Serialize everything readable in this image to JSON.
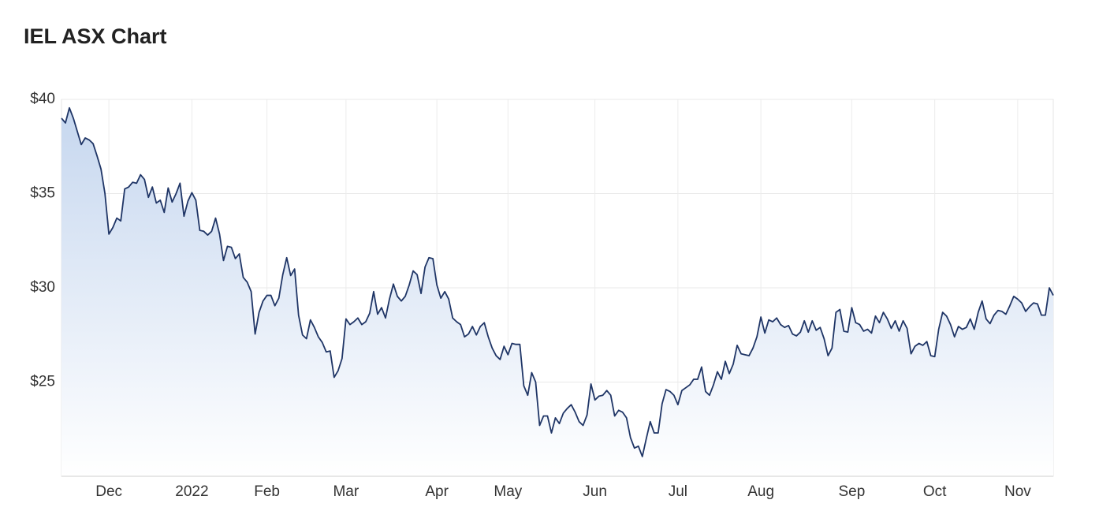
{
  "chart_data": {
    "type": "line",
    "title": "IEL ASX Chart",
    "categories": [
      null,
      null,
      null,
      null,
      null,
      null,
      null,
      null,
      null,
      null,
      null,
      null,
      "Dec",
      null,
      null,
      null,
      null,
      null,
      null,
      null,
      null,
      null,
      null,
      null,
      null,
      null,
      null,
      null,
      null,
      null,
      null,
      null,
      null,
      "2022",
      null,
      null,
      null,
      null,
      null,
      null,
      null,
      null,
      null,
      null,
      null,
      null,
      null,
      null,
      null,
      null,
      null,
      null,
      "Feb",
      null,
      null,
      null,
      null,
      null,
      null,
      null,
      null,
      null,
      null,
      null,
      null,
      null,
      null,
      null,
      null,
      null,
      null,
      null,
      "Mar",
      null,
      null,
      null,
      null,
      null,
      null,
      null,
      null,
      null,
      null,
      null,
      null,
      null,
      null,
      null,
      null,
      null,
      null,
      null,
      null,
      null,
      null,
      "Apr",
      null,
      null,
      null,
      null,
      null,
      null,
      null,
      null,
      null,
      null,
      null,
      null,
      null,
      null,
      null,
      null,
      null,
      "May",
      null,
      null,
      null,
      null,
      null,
      null,
      null,
      null,
      null,
      null,
      null,
      null,
      null,
      null,
      null,
      null,
      null,
      null,
      null,
      null,
      null,
      "Jun",
      null,
      null,
      null,
      null,
      null,
      null,
      null,
      null,
      null,
      null,
      null,
      null,
      null,
      null,
      null,
      null,
      null,
      null,
      null,
      null,
      "Jul",
      null,
      null,
      null,
      null,
      null,
      null,
      null,
      null,
      null,
      null,
      null,
      null,
      null,
      null,
      null,
      null,
      null,
      null,
      null,
      null,
      "Aug",
      null,
      null,
      null,
      null,
      null,
      null,
      null,
      null,
      null,
      null,
      null,
      null,
      null,
      null,
      null,
      null,
      null,
      null,
      null,
      null,
      null,
      null,
      "Sep",
      null,
      null,
      null,
      null,
      null,
      null,
      null,
      null,
      null,
      null,
      null,
      null,
      null,
      null,
      null,
      null,
      null,
      null,
      null,
      null,
      "Oct",
      null,
      null,
      null,
      null,
      null,
      null,
      null,
      null,
      null,
      null,
      null,
      null,
      null,
      null,
      null,
      null,
      null,
      null,
      null,
      null,
      "Nov",
      null,
      null,
      null,
      null,
      null,
      null,
      null,
      null,
      null
    ],
    "values": [
      39.0,
      38.75,
      39.55,
      39.0,
      38.3,
      37.6,
      37.95,
      37.85,
      37.65,
      37.0,
      36.3,
      35.0,
      32.85,
      33.2,
      33.7,
      33.55,
      35.25,
      35.35,
      35.6,
      35.55,
      36.0,
      35.75,
      34.8,
      35.35,
      34.5,
      34.65,
      34.0,
      35.3,
      34.55,
      35.0,
      35.55,
      33.8,
      34.6,
      35.05,
      34.65,
      33.05,
      33.0,
      32.8,
      33.0,
      33.7,
      32.85,
      31.45,
      32.2,
      32.15,
      31.55,
      31.8,
      30.55,
      30.3,
      29.8,
      27.55,
      28.7,
      29.3,
      29.6,
      29.6,
      29.05,
      29.45,
      30.7,
      31.6,
      30.65,
      31.0,
      28.55,
      27.5,
      27.3,
      28.3,
      27.9,
      27.4,
      27.1,
      26.6,
      26.65,
      25.25,
      25.6,
      26.25,
      28.35,
      28.05,
      28.2,
      28.4,
      28.05,
      28.2,
      28.65,
      29.8,
      28.6,
      28.95,
      28.4,
      29.4,
      30.2,
      29.55,
      29.3,
      29.55,
      30.15,
      30.9,
      30.7,
      29.7,
      31.1,
      31.6,
      31.55,
      30.15,
      29.45,
      29.8,
      29.4,
      28.4,
      28.2,
      28.05,
      27.4,
      27.55,
      27.95,
      27.5,
      27.95,
      28.15,
      27.4,
      26.8,
      26.4,
      26.2,
      26.9,
      26.45,
      27.05,
      27.0,
      27.0,
      24.8,
      24.3,
      25.5,
      25.0,
      22.7,
      23.2,
      23.2,
      22.3,
      23.1,
      22.8,
      23.35,
      23.6,
      23.8,
      23.4,
      22.9,
      22.7,
      23.25,
      24.9,
      24.05,
      24.25,
      24.3,
      24.55,
      24.3,
      23.2,
      23.5,
      23.4,
      23.1,
      22.05,
      21.5,
      21.6,
      21.05,
      22.0,
      22.9,
      22.3,
      22.3,
      23.85,
      24.6,
      24.5,
      24.3,
      23.8,
      24.55,
      24.7,
      24.85,
      25.15,
      25.15,
      25.8,
      24.5,
      24.3,
      24.85,
      25.55,
      25.15,
      26.1,
      25.45,
      25.95,
      26.95,
      26.5,
      26.45,
      26.4,
      26.8,
      27.4,
      28.45,
      27.6,
      28.3,
      28.2,
      28.4,
      28.05,
      27.9,
      28.0,
      27.55,
      27.45,
      27.65,
      28.25,
      27.65,
      28.25,
      27.75,
      27.9,
      27.3,
      26.4,
      26.8,
      28.7,
      28.85,
      27.7,
      27.65,
      28.95,
      28.15,
      28.05,
      27.7,
      27.8,
      27.6,
      28.5,
      28.15,
      28.7,
      28.35,
      27.85,
      28.25,
      27.7,
      28.25,
      27.85,
      26.5,
      26.9,
      27.05,
      26.95,
      27.15,
      26.4,
      26.35,
      27.8,
      28.7,
      28.5,
      28.05,
      27.4,
      27.95,
      27.8,
      27.9,
      28.35,
      27.8,
      28.7,
      29.3,
      28.35,
      28.1,
      28.55,
      28.8,
      28.75,
      28.6,
      29.05,
      29.55,
      29.4,
      29.2,
      28.75,
      29.0,
      29.2,
      29.15,
      28.55,
      28.55,
      30.0,
      29.6
    ],
    "color": "#1f3566",
    "ylim": [
      20,
      40
    ],
    "yticks": [
      {
        "value": 25,
        "label": "$25"
      },
      {
        "value": 30,
        "label": "$30"
      },
      {
        "value": 35,
        "label": "$35"
      },
      {
        "value": 40,
        "label": "$40"
      }
    ],
    "grid": true
  }
}
